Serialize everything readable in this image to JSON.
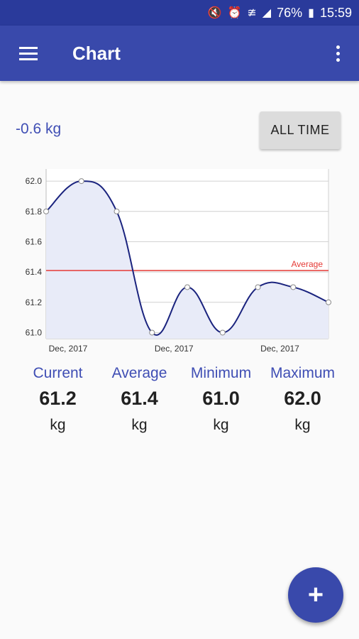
{
  "status_bar": {
    "battery": "76%",
    "time": "15:59",
    "icons": [
      "mute-icon",
      "alarm-icon",
      "wifi-icon",
      "signal-icon",
      "battery-icon"
    ]
  },
  "app_bar": {
    "title": "Chart",
    "menu_icon": "hamburger-menu-icon",
    "overflow_icon": "more-vert-icon"
  },
  "summary": {
    "delta": "-0.6 kg",
    "range_button": "ALL TIME"
  },
  "stats": [
    {
      "label": "Current",
      "value": "61.2",
      "unit": "kg"
    },
    {
      "label": "Average",
      "value": "61.4",
      "unit": "kg"
    },
    {
      "label": "Minimum",
      "value": "61.0",
      "unit": "kg"
    },
    {
      "label": "Maximum",
      "value": "62.0",
      "unit": "kg"
    }
  ],
  "fab": {
    "label": "+",
    "icon": "add-icon"
  },
  "colors": {
    "primary": "#3949ab",
    "line": "#1a237e",
    "average": "#e53935",
    "fill": "#e8ebf8"
  },
  "chart_data": {
    "type": "line",
    "series": [
      {
        "values": [
          61.8,
          62.0,
          61.8,
          61.0,
          61.3,
          61.0,
          61.3,
          61.3,
          61.2
        ]
      }
    ],
    "yticks": [
      "62.0",
      "61.8",
      "61.6",
      "61.4",
      "61.2",
      "61.0"
    ],
    "ylim": [
      60.96,
      62.08
    ],
    "xtick_labels": [
      "Dec, 2017",
      "Dec, 2017",
      "Dec, 2017"
    ],
    "xtick_index": [
      0,
      3,
      6
    ],
    "average": {
      "value": 61.41,
      "label": "Average"
    },
    "grid": true
  }
}
